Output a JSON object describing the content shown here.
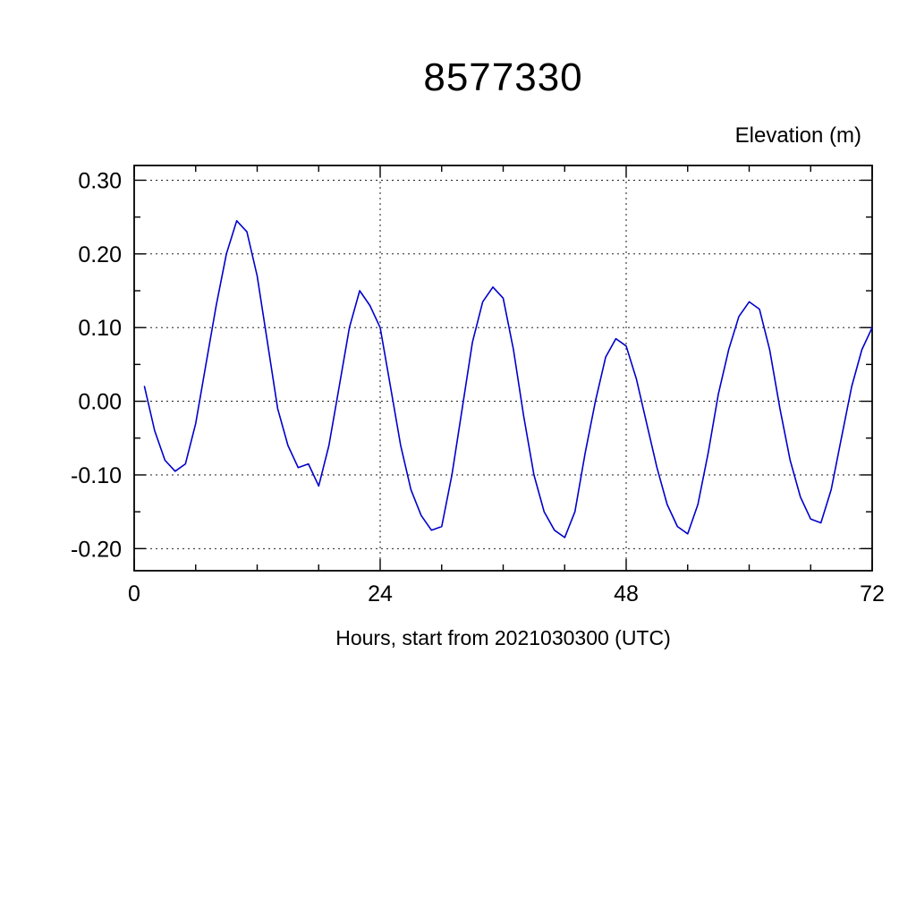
{
  "page": {
    "background": "#ffffff"
  },
  "chart_data": {
    "type": "line",
    "title": "8577330",
    "top_right_label": "Elevation (m)",
    "xlabel": "Hours, start from 2021030300 (UTC)",
    "ylabel": "",
    "xlim": [
      0,
      72
    ],
    "ylim": [
      -0.23,
      0.32
    ],
    "x_tick_values": [
      0,
      24,
      48,
      72
    ],
    "x_tick_labels": [
      "0",
      "24",
      "48",
      "72"
    ],
    "x_minor_ticks": [
      6,
      12,
      18,
      30,
      36,
      42,
      54,
      60,
      66
    ],
    "x_gridlines": [
      24,
      48
    ],
    "y_tick_values": [
      0.3,
      0.2,
      0.1,
      0.0,
      -0.1,
      -0.2
    ],
    "y_tick_labels": [
      "0.30",
      "0.20",
      "0.10",
      "0.00",
      "-0.10",
      "-0.20"
    ],
    "y_minor_ticks": [
      -0.15,
      -0.05,
      0.05,
      0.15,
      0.25
    ],
    "grid_style": "dotted",
    "legend": "none",
    "line_color": "#0000cc",
    "series": [
      {
        "name": "elevation",
        "x": [
          1,
          2,
          3,
          4,
          5,
          6,
          7,
          8,
          9,
          10,
          11,
          12,
          13,
          14,
          15,
          16,
          17,
          18,
          19,
          20,
          21,
          22,
          23,
          24,
          25,
          26,
          27,
          28,
          29,
          30,
          31,
          32,
          33,
          34,
          35,
          36,
          37,
          38,
          39,
          40,
          41,
          42,
          43,
          44,
          45,
          46,
          47,
          48,
          49,
          50,
          51,
          52,
          53,
          54,
          55,
          56,
          57,
          58,
          59,
          60,
          61,
          62,
          63,
          64,
          65,
          66,
          67,
          68,
          69,
          70,
          71,
          72
        ],
        "y": [
          0.02,
          -0.04,
          -0.08,
          -0.095,
          -0.085,
          -0.03,
          0.05,
          0.13,
          0.2,
          0.245,
          0.23,
          0.17,
          0.08,
          -0.01,
          -0.06,
          -0.09,
          -0.085,
          -0.115,
          -0.06,
          0.02,
          0.1,
          0.15,
          0.13,
          0.1,
          0.02,
          -0.06,
          -0.12,
          -0.155,
          -0.175,
          -0.17,
          -0.1,
          -0.01,
          0.08,
          0.135,
          0.155,
          0.14,
          0.07,
          -0.02,
          -0.1,
          -0.15,
          -0.175,
          -0.185,
          -0.15,
          -0.07,
          0.0,
          0.06,
          0.085,
          0.075,
          0.03,
          -0.03,
          -0.09,
          -0.14,
          -0.17,
          -0.18,
          -0.14,
          -0.07,
          0.01,
          0.07,
          0.115,
          0.135,
          0.125,
          0.07,
          -0.01,
          -0.08,
          -0.13,
          -0.16,
          -0.165,
          -0.12,
          -0.05,
          0.02,
          0.07,
          0.1
        ]
      }
    ]
  }
}
